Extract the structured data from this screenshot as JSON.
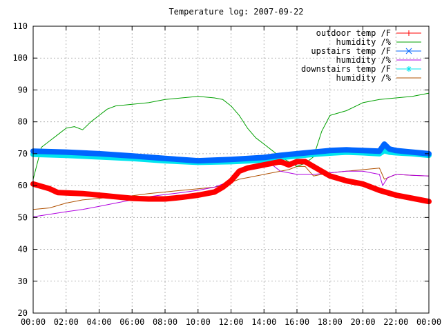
{
  "chart_data": {
    "type": "line",
    "title": "Temperature log: 2007-09-22",
    "xlabel": "",
    "ylabel": "",
    "ylim": [
      20,
      110
    ],
    "xlim": [
      0,
      24
    ],
    "grid": true,
    "legend_position": "top-right",
    "x_tick_labels": [
      "00:00",
      "02:00",
      "04:00",
      "06:00",
      "08:00",
      "10:00",
      "12:00",
      "14:00",
      "16:00",
      "18:00",
      "20:00",
      "22:00",
      "00:00"
    ],
    "y_tick_labels": [
      "20",
      "30",
      "40",
      "50",
      "60",
      "70",
      "80",
      "90",
      "100",
      "110"
    ],
    "series": [
      {
        "name": "outdoor temp /F",
        "color": "#ff0000",
        "marker": "plus",
        "x": [
          0,
          1,
          1.5,
          2,
          3,
          4,
          5,
          6,
          7,
          8,
          9,
          10,
          11,
          11.5,
          12,
          12.5,
          13,
          14,
          15,
          15.5,
          16,
          16.5,
          17,
          17.5,
          18,
          19,
          20,
          21,
          22,
          23,
          24
        ],
        "y": [
          60.5,
          59,
          57.8,
          57.7,
          57.5,
          57,
          56.5,
          56,
          55.8,
          55.8,
          56.3,
          57,
          58,
          59.5,
          61.5,
          64.5,
          65.5,
          66.5,
          67.5,
          66.5,
          67.5,
          67.5,
          66,
          64.5,
          63,
          61.5,
          60.5,
          58.5,
          57,
          56,
          55
        ]
      },
      {
        "name": "humidity /%",
        "color": "#00a000",
        "marker": "none",
        "x": [
          0,
          0.3,
          0.5,
          1,
          1.5,
          2,
          2.5,
          3,
          3.5,
          4,
          4.5,
          5,
          6,
          7,
          8,
          9,
          10,
          11,
          11.5,
          12,
          12.5,
          13,
          13.5,
          14,
          14.5,
          15,
          15.5,
          16,
          16.5,
          17,
          17.5,
          18,
          19,
          20,
          21,
          22,
          23,
          24
        ],
        "y": [
          62,
          68,
          72,
          74,
          76,
          78,
          78.5,
          77.5,
          80,
          82,
          84,
          85,
          85.5,
          86,
          87,
          87.5,
          88,
          87.5,
          87,
          85,
          82,
          78,
          75,
          73,
          71,
          69,
          67.5,
          66,
          67,
          69,
          77,
          82,
          83.5,
          86,
          87,
          87.5,
          88,
          89
        ]
      },
      {
        "name": "upstairs temp /F",
        "color": "#0066ff",
        "marker": "x",
        "x": [
          0,
          2,
          4,
          6,
          8,
          10,
          12,
          14,
          15,
          16,
          17,
          18,
          19,
          20,
          21,
          21.3,
          21.6,
          22,
          23,
          24
        ],
        "y": [
          70.8,
          70.5,
          70,
          69.3,
          68.5,
          67.8,
          68.2,
          68.8,
          69.5,
          70,
          70.5,
          71,
          71.2,
          71,
          70.8,
          73,
          71.5,
          71,
          70.5,
          70
        ]
      },
      {
        "name": "humidity /%",
        "color": "#b000e0",
        "marker": "none",
        "x": [
          0,
          1,
          2,
          3,
          4,
          5,
          6,
          7,
          8,
          9,
          10,
          11,
          11.5,
          12,
          12.5,
          13,
          14,
          14.5,
          15,
          16,
          17,
          18,
          19,
          20,
          21,
          21.2,
          21.5,
          22,
          23,
          24
        ],
        "y": [
          50.2,
          51,
          51.8,
          52.5,
          53.5,
          54.5,
          55.5,
          56.5,
          57.2,
          57.8,
          58.5,
          59.5,
          60.5,
          62,
          65,
          65.5,
          66,
          66.5,
          64.5,
          63.5,
          63.5,
          64,
          64.5,
          64.5,
          63.5,
          60,
          62.5,
          63.5,
          63.2,
          63
        ]
      },
      {
        "name": "downstairs temp /F",
        "color": "#00e5ee",
        "marker": "star",
        "x": [
          0,
          2,
          4,
          6,
          8,
          10,
          12,
          14,
          15,
          16,
          17,
          18,
          19,
          20,
          21,
          21.3,
          21.6,
          22,
          23,
          24
        ],
        "y": [
          69.8,
          69.5,
          69,
          68.5,
          67.8,
          67.3,
          67.5,
          68,
          68.8,
          69.3,
          69.8,
          70.2,
          70.5,
          70.3,
          70,
          71,
          70.5,
          70.3,
          70,
          69.5
        ]
      },
      {
        "name": "humidity /%",
        "color": "#b05000",
        "marker": "none",
        "x": [
          0,
          1,
          2,
          3,
          4,
          5,
          6,
          7,
          8,
          9,
          10,
          11,
          11.5,
          12,
          12.5,
          13,
          14,
          15,
          15.5,
          16,
          16.5,
          17,
          17.5,
          18,
          19,
          20,
          21,
          21.3,
          22,
          23,
          24
        ],
        "y": [
          52.5,
          53,
          54.5,
          55.5,
          56,
          56.5,
          56.8,
          57.5,
          58,
          58.5,
          59,
          59.5,
          60,
          61,
          62,
          62.5,
          63.5,
          64.5,
          65,
          66,
          66,
          63,
          63.5,
          64,
          64.5,
          65,
          65.5,
          62,
          63.5,
          63.2,
          63
        ]
      }
    ]
  }
}
